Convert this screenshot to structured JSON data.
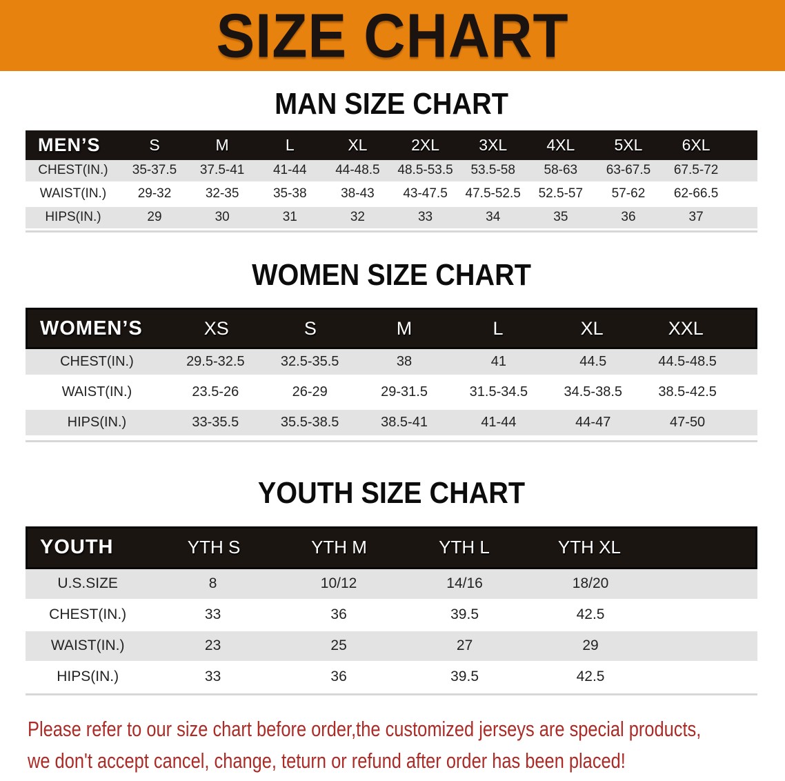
{
  "banner": {
    "title": "SIZE CHART",
    "bg_color": "#e8820f",
    "text_color": "#1a1310"
  },
  "sections": [
    {
      "heading": "MAN SIZE CHART",
      "header_label": "MEN’S",
      "columns": [
        "S",
        "M",
        "L",
        "XL",
        "2XL",
        "3XL",
        "4XL",
        "5XL",
        "6XL"
      ],
      "rows": [
        {
          "label": "CHEST(IN.)",
          "values": [
            "35-37.5",
            "37.5-41",
            "41-44",
            "44-48.5",
            "48.5-53.5",
            "53.5-58",
            "58-63",
            "63-67.5",
            "67.5-72"
          ]
        },
        {
          "label": "WAIST(IN.)",
          "values": [
            "29-32",
            "32-35",
            "35-38",
            "38-43",
            "43-47.5",
            "47.5-52.5",
            "52.5-57",
            "57-62",
            "62-66.5"
          ]
        },
        {
          "label": "HIPS(IN.)",
          "values": [
            "29",
            "30",
            "31",
            "32",
            "33",
            "34",
            "35",
            "36",
            "37"
          ]
        }
      ]
    },
    {
      "heading": "WOMEN SIZE CHART",
      "header_label": "WOMEN’S",
      "columns": [
        "XS",
        "S",
        "M",
        "L",
        "XL",
        "XXL"
      ],
      "rows": [
        {
          "label": "CHEST(IN.)",
          "values": [
            "29.5-32.5",
            "32.5-35.5",
            "38",
            "41",
            "44.5",
            "44.5-48.5"
          ]
        },
        {
          "label": "WAIST(IN.)",
          "values": [
            "23.5-26",
            "26-29",
            "29-31.5",
            "31.5-34.5",
            "34.5-38.5",
            "38.5-42.5"
          ]
        },
        {
          "label": "HIPS(IN.)",
          "values": [
            "33-35.5",
            "35.5-38.5",
            "38.5-41",
            "41-44",
            "44-47",
            "47-50"
          ]
        }
      ]
    },
    {
      "heading": "YOUTH SIZE CHART",
      "header_label": "YOUTH",
      "columns": [
        "YTH S",
        "YTH M",
        "YTH L",
        "YTH XL"
      ],
      "rows": [
        {
          "label": "U.S.SIZE",
          "values": [
            "8",
            "10/12",
            "14/16",
            "18/20"
          ]
        },
        {
          "label": "CHEST(IN.)",
          "values": [
            "33",
            "36",
            "39.5",
            "42.5"
          ]
        },
        {
          "label": "WAIST(IN.)",
          "values": [
            "23",
            "25",
            "27",
            "29"
          ]
        },
        {
          "label": "HIPS(IN.)",
          "values": [
            "33",
            "36",
            "39.5",
            "42.5"
          ]
        }
      ]
    }
  ],
  "disclaimer": {
    "line1": "Please refer to our size chart before order,the customized jerseys are special products,",
    "line2": "we don't accept cancel, change, teturn or refund after order has been placed!",
    "color": "#ac2b26"
  },
  "colors": {
    "banner_orange": "#e8820f",
    "header_bar_black": "#191412",
    "row_stripe_gray": "#e3e3e4",
    "disclaimer_red": "#ac2b26"
  }
}
